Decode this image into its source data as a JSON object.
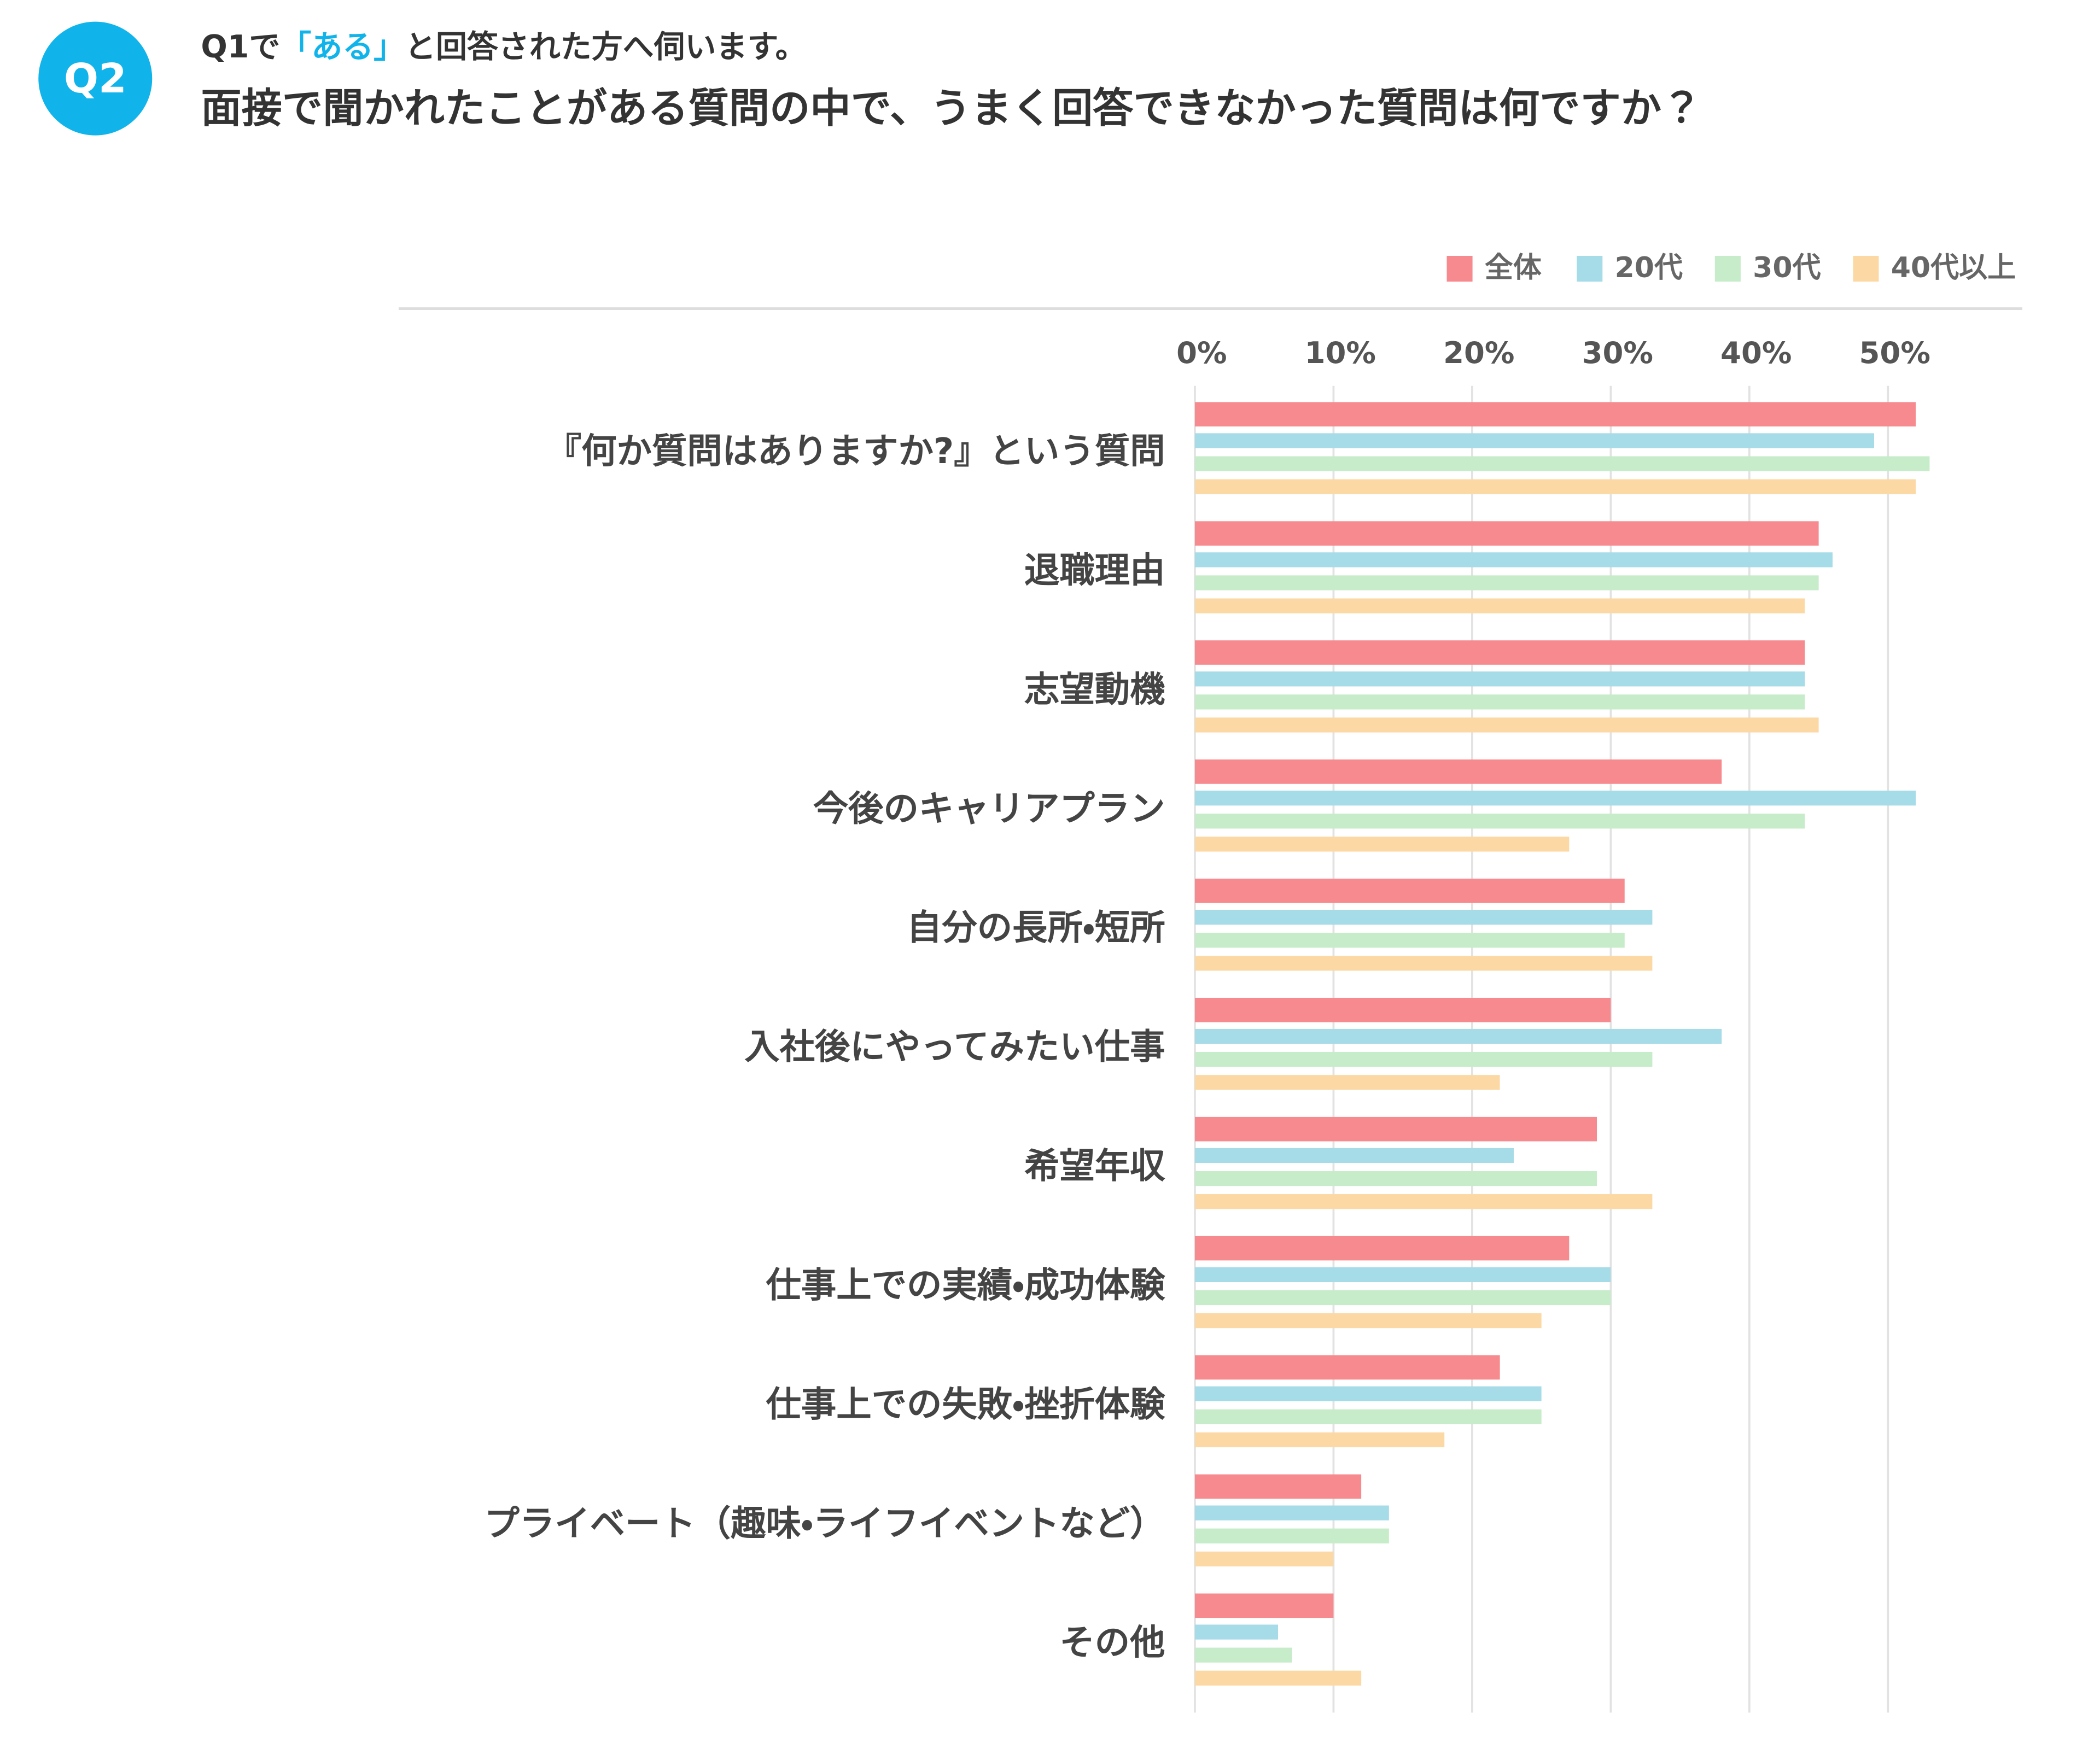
{
  "header": {
    "badge": "Q2",
    "subtitle": [
      "Q1で",
      "「ある」",
      "と回答された方へ伺います。"
    ],
    "title": "面接で聞かれたことがある質問の中で、うまく回答できなかった質問は何ですか？"
  },
  "chart_data": {
    "type": "barh",
    "categories": [
      "『何か質問はありますか?』という質問",
      "退職理由",
      "志望動機",
      "今後のキャリアプラン",
      "自分の長所・短所",
      "入社後にやってみたい仕事",
      "希望年収",
      "仕事上での実績・成功体験",
      "仕事上での失敗・挫折体験",
      "プライベート（趣味・ライフイベントなど）",
      "その他"
    ],
    "series": [
      {
        "name": "全体",
        "color": "#f78a8e",
        "values": [
          52,
          45,
          44,
          38,
          31,
          30,
          29,
          27,
          22,
          12,
          10
        ]
      },
      {
        "name": "20代",
        "color": "#a6dbe8",
        "values": [
          49,
          46,
          44,
          52,
          33,
          38,
          23,
          30,
          25,
          14,
          6
        ]
      },
      {
        "name": "30代",
        "color": "#c6ecc9",
        "values": [
          53,
          45,
          44,
          44,
          31,
          33,
          29,
          30,
          25,
          14,
          7
        ]
      },
      {
        "name": "40代以上",
        "color": "#fcd9a4",
        "values": [
          52,
          44,
          45,
          27,
          33,
          22,
          33,
          25,
          18,
          10,
          12
        ]
      }
    ],
    "xlim": [
      0,
      55
    ],
    "xticks": [
      {
        "value": 0,
        "label": "0%"
      },
      {
        "value": 10,
        "label": "10%"
      },
      {
        "value": 20,
        "label": "20%"
      },
      {
        "value": 30,
        "label": "30%"
      },
      {
        "value": 40,
        "label": "40%"
      },
      {
        "value": 50,
        "label": "50%"
      }
    ],
    "grid": true,
    "legend": "top-right"
  }
}
